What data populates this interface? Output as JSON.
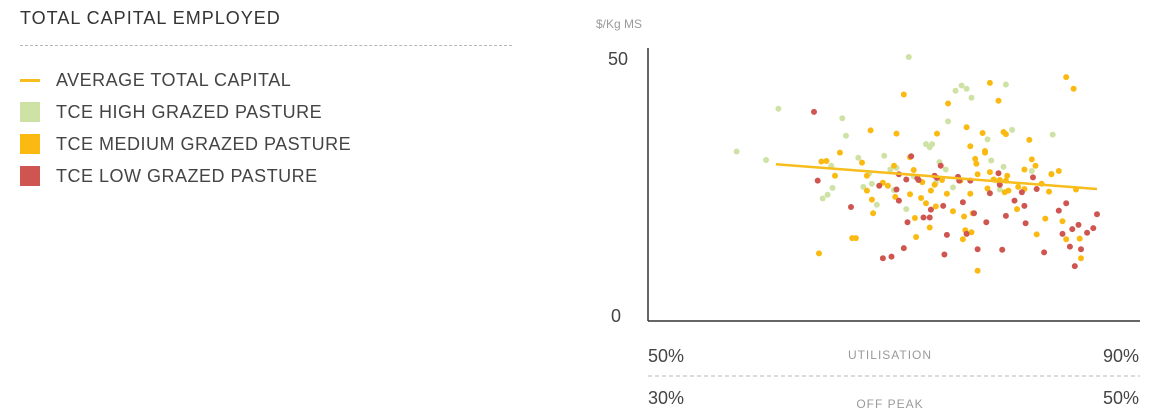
{
  "header": {
    "title": "TOTAL CAPITAL EMPLOYED"
  },
  "legend": [
    {
      "label": "AVERAGE TOTAL CAPITAL",
      "type": "line",
      "color": "#f6bd1c"
    },
    {
      "label": "TCE HIGH GRAZED PASTURE",
      "type": "square",
      "color": "#cfe2a6"
    },
    {
      "label": "TCE MEDIUM GRAZED PASTURE",
      "type": "square",
      "color": "#fbba12"
    },
    {
      "label": "TCE LOW GRAZED PASTURE",
      "type": "square",
      "color": "#cf5650"
    }
  ],
  "axis": {
    "y_unit": "$/Kg MS",
    "y_top": "50",
    "y_bottom": "0",
    "x1_left": "50%",
    "x1_label": "UTILISATION",
    "x1_right": "90%",
    "x2_left": "30%",
    "x2_label": "OFF PEAK",
    "x2_right": "50%"
  },
  "chart_data": {
    "type": "scatter",
    "title": "TOTAL CAPITAL EMPLOYED",
    "xlabel": "UTILISATION",
    "ylabel": "$/Kg MS",
    "xlim": [
      50,
      90
    ],
    "ylim": [
      0,
      50
    ],
    "secondary_x": {
      "label": "OFF PEAK",
      "lim": [
        30,
        50
      ]
    },
    "grid": false,
    "average_line": {
      "name": "AVERAGE TOTAL CAPITAL",
      "color": "#f6bd1c",
      "x": [
        60.4,
        86.5
      ],
      "y": [
        29.7,
        25.0
      ]
    },
    "series": [
      {
        "name": "TCE HIGH GRAZED PASTURE",
        "color": "#cfe2a6",
        "points": [
          [
            57.2,
            32.1
          ],
          [
            59.6,
            30.5
          ],
          [
            60.6,
            40.2
          ],
          [
            64.2,
            23.2
          ],
          [
            64.6,
            23.9
          ],
          [
            64.9,
            29.4
          ],
          [
            65.0,
            25.2
          ],
          [
            65.8,
            38.4
          ],
          [
            66.1,
            35.1
          ],
          [
            67.1,
            30.9
          ],
          [
            67.5,
            25.4
          ],
          [
            68.0,
            28.0
          ],
          [
            68.2,
            26.0
          ],
          [
            68.6,
            22.0
          ],
          [
            69.2,
            31.3
          ],
          [
            69.7,
            28.7
          ],
          [
            70.0,
            24.8
          ],
          [
            70.2,
            29.0
          ],
          [
            71.0,
            21.2
          ],
          [
            71.2,
            50.0
          ],
          [
            71.6,
            27.4
          ],
          [
            72.6,
            33.5
          ],
          [
            72.9,
            32.9
          ],
          [
            73.1,
            33.5
          ],
          [
            73.4,
            26.2
          ],
          [
            73.7,
            30.1
          ],
          [
            74.2,
            28.7
          ],
          [
            74.4,
            37.8
          ],
          [
            74.8,
            25.3
          ],
          [
            75.0,
            43.6
          ],
          [
            75.5,
            44.6
          ],
          [
            75.9,
            44.0
          ],
          [
            76.3,
            42.3
          ],
          [
            77.6,
            34.4
          ],
          [
            77.9,
            30.4
          ],
          [
            78.3,
            26.6
          ],
          [
            78.6,
            24.9
          ],
          [
            78.9,
            29.2
          ],
          [
            79.1,
            44.8
          ],
          [
            79.6,
            36.2
          ],
          [
            81.2,
            28.4
          ],
          [
            82.8,
            27.9
          ],
          [
            82.9,
            35.3
          ]
        ]
      },
      {
        "name": "TCE MEDIUM GRAZED PASTURE",
        "color": "#fbba12",
        "points": [
          [
            63.9,
            12.8
          ],
          [
            64.1,
            30.2
          ],
          [
            64.5,
            30.3
          ],
          [
            65.2,
            27.5
          ],
          [
            65.6,
            31.9
          ],
          [
            66.6,
            15.7
          ],
          [
            66.9,
            15.7
          ],
          [
            67.4,
            30.0
          ],
          [
            67.8,
            27.5
          ],
          [
            67.8,
            24.7
          ],
          [
            68.1,
            36.1
          ],
          [
            68.2,
            23.0
          ],
          [
            68.3,
            20.4
          ],
          [
            69.1,
            26.2
          ],
          [
            69.5,
            25.6
          ],
          [
            70.0,
            29.4
          ],
          [
            70.1,
            23.5
          ],
          [
            70.2,
            35.5
          ],
          [
            70.8,
            42.9
          ],
          [
            71.3,
            31.0
          ],
          [
            71.3,
            24.0
          ],
          [
            71.6,
            28.6
          ],
          [
            71.7,
            19.5
          ],
          [
            71.8,
            15.9
          ],
          [
            72.2,
            23.3
          ],
          [
            72.3,
            26.3
          ],
          [
            72.6,
            22.3
          ],
          [
            72.9,
            17.7
          ],
          [
            73.0,
            24.7
          ],
          [
            73.3,
            25.8
          ],
          [
            73.4,
            21.7
          ],
          [
            73.5,
            35.5
          ],
          [
            73.9,
            26.7
          ],
          [
            74.3,
            24.1
          ],
          [
            74.4,
            41.2
          ],
          [
            74.8,
            20.8
          ],
          [
            75.4,
            26.6
          ],
          [
            75.6,
            15.5
          ],
          [
            75.7,
            19.8
          ],
          [
            75.8,
            17.2
          ],
          [
            75.9,
            36.7
          ],
          [
            76.2,
            24.1
          ],
          [
            76.2,
            33.1
          ],
          [
            76.3,
            16.8
          ],
          [
            76.4,
            20.4
          ],
          [
            76.6,
            30.7
          ],
          [
            76.7,
            29.8
          ],
          [
            76.8,
            27.8
          ],
          [
            76.8,
            9.5
          ],
          [
            77.2,
            35.6
          ],
          [
            77.4,
            31.9
          ],
          [
            77.4,
            32.2
          ],
          [
            77.6,
            25.1
          ],
          [
            77.8,
            45.1
          ],
          [
            77.8,
            28.2
          ],
          [
            78.1,
            26.8
          ],
          [
            78.5,
            41.7
          ],
          [
            78.6,
            26.7
          ],
          [
            78.9,
            35.8
          ],
          [
            79.0,
            24.4
          ],
          [
            79.1,
            26.6
          ],
          [
            79.1,
            35.4
          ],
          [
            79.2,
            27.5
          ],
          [
            79.3,
            24.7
          ],
          [
            80.0,
            21.2
          ],
          [
            80.1,
            25.4
          ],
          [
            80.6,
            28.7
          ],
          [
            80.6,
            25.0
          ],
          [
            81.0,
            34.3
          ],
          [
            81.2,
            30.6
          ],
          [
            81.5,
            29.4
          ],
          [
            81.6,
            16.4
          ],
          [
            82.0,
            26.0
          ],
          [
            82.3,
            19.4
          ],
          [
            82.6,
            24.5
          ],
          [
            82.8,
            27.8
          ],
          [
            83.4,
            28.4
          ],
          [
            83.7,
            18.9
          ],
          [
            84.0,
            15.5
          ],
          [
            84.0,
            46.2
          ],
          [
            84.6,
            44.0
          ],
          [
            84.8,
            24.9
          ],
          [
            85.1,
            15.6
          ],
          [
            85.2,
            11.9
          ]
        ]
      },
      {
        "name": "TCE LOW GRAZED PASTURE",
        "color": "#cf5650",
        "points": [
          [
            63.5,
            39.6
          ],
          [
            63.8,
            26.6
          ],
          [
            66.5,
            21.6
          ],
          [
            68.8,
            25.6
          ],
          [
            69.1,
            11.9
          ],
          [
            69.8,
            12.2
          ],
          [
            70.2,
            24.9
          ],
          [
            70.4,
            22.8
          ],
          [
            70.4,
            27.8
          ],
          [
            70.8,
            13.8
          ],
          [
            71.0,
            26.8
          ],
          [
            71.1,
            18.7
          ],
          [
            71.4,
            31.2
          ],
          [
            71.9,
            27.0
          ],
          [
            72.0,
            26.7
          ],
          [
            72.4,
            19.6
          ],
          [
            72.9,
            19.6
          ],
          [
            73.0,
            21.1
          ],
          [
            73.3,
            27.5
          ],
          [
            73.5,
            27.1
          ],
          [
            73.8,
            29.4
          ],
          [
            74.0,
            21.8
          ],
          [
            74.1,
            12.6
          ],
          [
            74.3,
            16.3
          ],
          [
            75.2,
            27.3
          ],
          [
            75.3,
            26.6
          ],
          [
            75.6,
            22.5
          ],
          [
            75.9,
            16.5
          ],
          [
            76.2,
            26.6
          ],
          [
            76.5,
            20.4
          ],
          [
            76.8,
            13.6
          ],
          [
            77.5,
            18.7
          ],
          [
            77.8,
            24.2
          ],
          [
            78.5,
            28.0
          ],
          [
            78.6,
            25.8
          ],
          [
            78.8,
            13.5
          ],
          [
            79.1,
            19.9
          ],
          [
            79.8,
            22.8
          ],
          [
            80.4,
            24.4
          ],
          [
            80.6,
            21.8
          ],
          [
            80.7,
            18.5
          ],
          [
            81.3,
            27.2
          ],
          [
            81.6,
            25.0
          ],
          [
            82.2,
            13.0
          ],
          [
            83.4,
            20.9
          ],
          [
            83.7,
            16.5
          ],
          [
            84.0,
            22.3
          ],
          [
            84.3,
            14.1
          ],
          [
            84.5,
            17.4
          ],
          [
            84.7,
            10.4
          ],
          [
            85.0,
            18.2
          ],
          [
            85.2,
            13.6
          ],
          [
            85.7,
            16.7
          ],
          [
            86.2,
            17.6
          ],
          [
            86.5,
            20.2
          ]
        ]
      }
    ]
  }
}
